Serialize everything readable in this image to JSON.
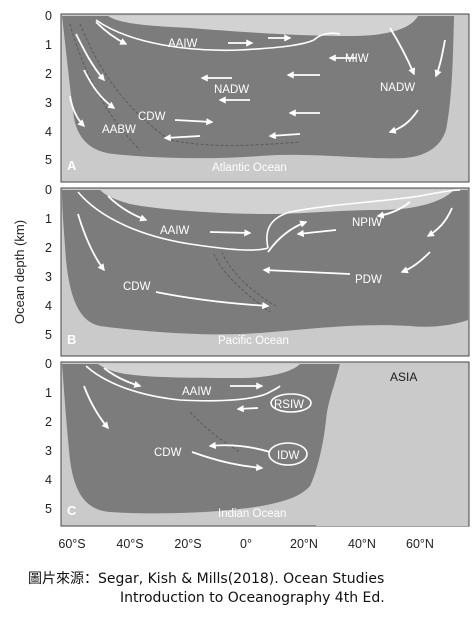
{
  "axis": {
    "ylabel": "Ocean depth (km)",
    "depth_ticks": [
      "0",
      "1",
      "2",
      "3",
      "4",
      "5"
    ],
    "lat_ticks": [
      "60°S",
      "40°S",
      "20°S",
      "0°",
      "20°N",
      "40°N",
      "60°N"
    ]
  },
  "panels": [
    {
      "letter": "A",
      "ocean": "Atlantic Ocean",
      "water_labels": [
        "AAIW",
        "MIW",
        "NADW",
        "NADW",
        "CDW",
        "AABW"
      ]
    },
    {
      "letter": "B",
      "ocean": "Pacific Ocean",
      "water_labels": [
        "AAIW",
        "NPIW",
        "CDW",
        "PDW"
      ]
    },
    {
      "letter": "C",
      "ocean": "Indian Ocean",
      "water_labels": [
        "AAIW",
        "RSIW",
        "CDW",
        "IDW"
      ],
      "land_label": "ASIA"
    }
  ],
  "credit": {
    "line1": "圖片來源：Segar,  Kish & Mills(2018). Ocean Studies",
    "line2": "Introduction to Oceanography 4th Ed."
  },
  "colors": {
    "panel_bg": "#cacaca",
    "ocean": "#7c7c7c",
    "surface": "#d2d2d2",
    "arrows": "#ffffff"
  }
}
